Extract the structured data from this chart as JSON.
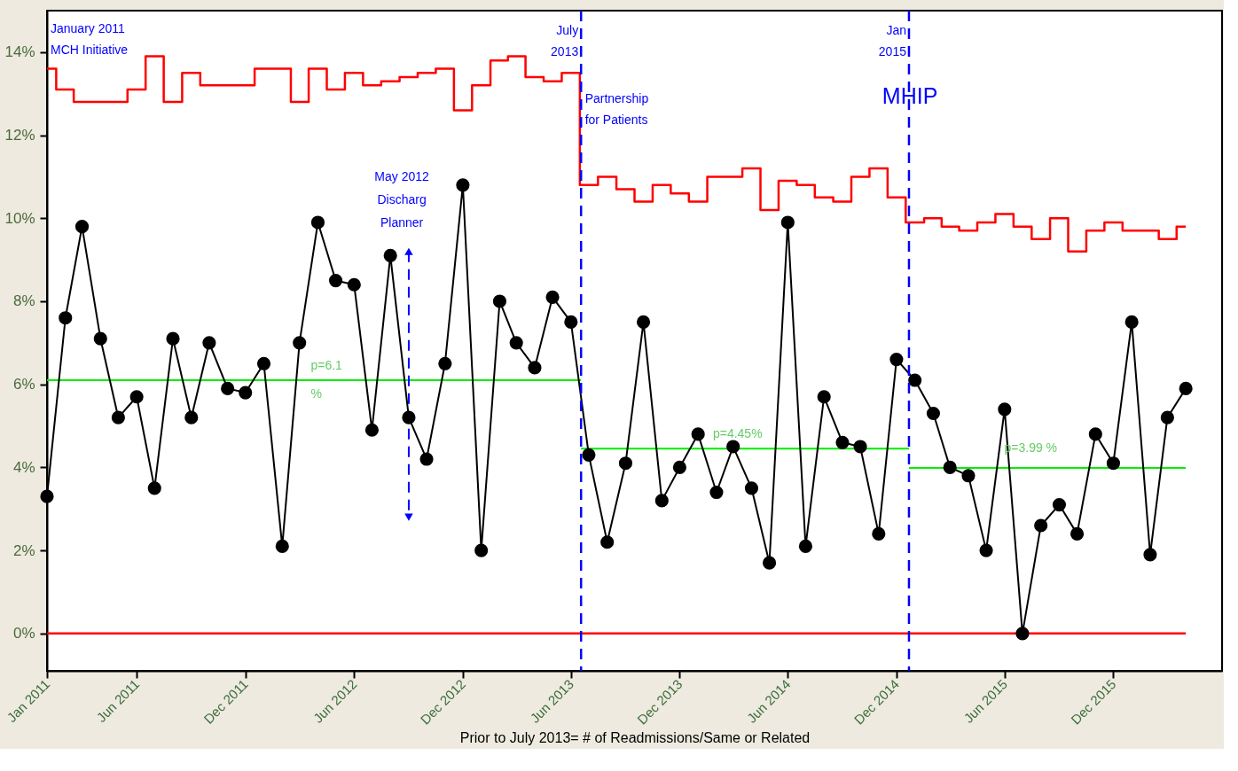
{
  "chart_data": {
    "type": "line",
    "xlabel": "Prior to July 2013= # of Readmissions/Same or Related",
    "x": [
      "2011-01",
      "2011-02",
      "2011-03",
      "2011-04",
      "2011-05",
      "2011-06",
      "2011-07",
      "2011-08",
      "2011-09",
      "2011-10",
      "2011-11",
      "2011-12",
      "2012-01",
      "2012-02",
      "2012-03",
      "2012-04",
      "2012-05",
      "2012-06",
      "2012-07",
      "2012-08",
      "2012-09",
      "2012-10",
      "2012-11",
      "2012-12",
      "2013-01",
      "2013-02",
      "2013-03",
      "2013-04",
      "2013-05",
      "2013-06",
      "2013-07",
      "2013-08",
      "2013-09",
      "2013-10",
      "2013-11",
      "2013-12",
      "2014-01",
      "2014-02",
      "2014-03",
      "2014-04",
      "2014-05",
      "2014-06",
      "2014-07",
      "2014-08",
      "2014-09",
      "2014-10",
      "2014-11",
      "2014-12",
      "2015-01",
      "2015-02",
      "2015-03",
      "2015-04",
      "2015-05",
      "2015-06",
      "2015-07",
      "2015-08",
      "2015-09",
      "2015-10",
      "2015-11",
      "2015-12",
      "2016-01",
      "2016-02",
      "2016-03",
      "2016-04"
    ],
    "series": [
      {
        "type": "step",
        "color": "#ff0000",
        "marker": "none",
        "values": [
          13.6,
          13.1,
          12.8,
          12.8,
          12.8,
          13.1,
          13.9,
          12.8,
          13.5,
          13.2,
          13.2,
          13.2,
          13.6,
          13.6,
          12.8,
          13.6,
          13.1,
          13.5,
          13.2,
          13.3,
          13.4,
          13.5,
          13.6,
          12.6,
          13.2,
          13.8,
          13.9,
          13.4,
          13.3,
          13.5,
          10.8,
          11.0,
          10.7,
          10.4,
          10.8,
          10.6,
          10.4,
          11.0,
          11.0,
          11.2,
          10.2,
          10.9,
          10.8,
          10.5,
          10.4,
          11.0,
          11.2,
          10.5,
          9.9,
          10.0,
          9.8,
          9.7,
          9.9,
          10.1,
          9.8,
          9.5,
          10.0,
          9.2,
          9.7,
          9.9,
          9.7,
          9.7,
          9.5,
          9.8
        ]
      },
      {
        "type": "step",
        "color": "#ff0000",
        "marker": "none",
        "x": [
          "2011-01",
          "2016-04"
        ],
        "values": [
          0,
          0
        ]
      },
      {
        "color": "#00ee00",
        "marker": "none",
        "x": [
          "2011-01",
          "2013-06-18"
        ],
        "values": [
          6.1,
          6.1
        ]
      },
      {
        "color": "#00ee00",
        "marker": "none",
        "x": [
          "2013-06-18",
          "2014-12-22"
        ],
        "values": [
          4.45,
          4.45
        ]
      },
      {
        "color": "#00ee00",
        "marker": "none",
        "x": [
          "2014-12-22",
          "2016-04"
        ],
        "values": [
          3.99,
          3.99
        ]
      },
      {
        "color": "#0000ff",
        "marker": "triangle",
        "line_style": "dashed",
        "x": [
          "2012-09",
          "2012-09"
        ],
        "values": [
          9.2,
          2.8
        ]
      },
      {
        "color": "#000000",
        "marker": "circle",
        "values": [
          3.3,
          7.6,
          9.8,
          7.1,
          5.2,
          5.7,
          3.5,
          7.1,
          5.2,
          7.0,
          5.9,
          5.8,
          6.5,
          2.1,
          7.0,
          9.9,
          8.5,
          8.4,
          4.9,
          9.1,
          5.2,
          4.2,
          6.5,
          10.8,
          2.0,
          8.0,
          7.0,
          6.4,
          8.1,
          7.5,
          4.3,
          2.2,
          4.1,
          7.5,
          3.2,
          4.0,
          4.8,
          3.4,
          4.5,
          3.5,
          1.7,
          9.9,
          2.1,
          5.7,
          4.6,
          4.5,
          2.4,
          6.6,
          6.1,
          5.3,
          4.0,
          3.8,
          2.0,
          5.4,
          0.0,
          2.6,
          3.1,
          2.4,
          4.8,
          4.1,
          7.5,
          1.9,
          5.2,
          5.9
        ]
      }
    ],
    "xlim": [
      "2011-01",
      "2016-06"
    ],
    "xticks": [
      {
        "value": "2011-01",
        "label": "Jan 2011"
      },
      {
        "value": "2011-06",
        "label": "Jun 2011"
      },
      {
        "value": "2011-12",
        "label": "Dec 2011"
      },
      {
        "value": "2012-06",
        "label": "Jun 2012"
      },
      {
        "value": "2012-12",
        "label": "Dec 2012"
      },
      {
        "value": "2013-06",
        "label": "Jun 2013"
      },
      {
        "value": "2013-12",
        "label": "Dec 2013"
      },
      {
        "value": "2014-06",
        "label": "Jun 2014"
      },
      {
        "value": "2014-12",
        "label": "Dec 2014"
      },
      {
        "value": "2015-06",
        "label": "Jun 2015"
      },
      {
        "value": "2015-12",
        "label": "Dec 2015"
      }
    ],
    "ylim": [
      -0.9,
      15
    ],
    "yticks": [
      {
        "value": 0,
        "label": "0%"
      },
      {
        "value": 2,
        "label": "2%"
      },
      {
        "value": 4,
        "label": "4%"
      },
      {
        "value": 6,
        "label": "6%"
      },
      {
        "value": 8,
        "label": "8%"
      },
      {
        "value": 10,
        "label": "10%"
      },
      {
        "value": 12,
        "label": "12%"
      },
      {
        "value": 14,
        "label": "14%"
      }
    ],
    "ref_lines": [
      {
        "axis": "x",
        "value": "2013-06-18",
        "label": "July\n2013",
        "color": "#0000ff",
        "line_style": "dashed"
      },
      {
        "axis": "x",
        "value": "2014-12-22",
        "label": "Jan\n2015",
        "color": "#0000ff",
        "line_style": "dashed"
      }
    ],
    "annotations": [
      "January 2011\nMCH Initiative",
      "Partnership\nfor Patients",
      "MHIP",
      "May 2012\nDischarg\n\nPlanner",
      {
        "text": "p=6.1\n%",
        "x": "2012-04",
        "y": 6.1
      },
      {
        "text": "p=4.45%",
        "x": "2014-02",
        "y": 4.45
      },
      {
        "text": "p=3.99 %",
        "x": "2015-07-15",
        "y": 3.99
      }
    ],
    "grid": false,
    "line_style": "solid"
  }
}
